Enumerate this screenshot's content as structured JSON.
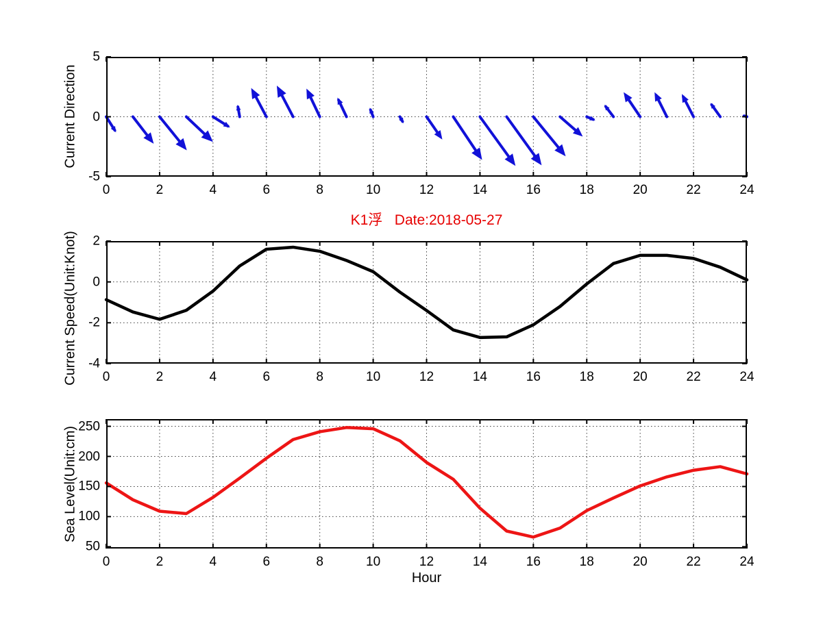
{
  "figure": {
    "title": "K1浮   Date:2018-05-27",
    "title_color": "#e60000",
    "xlabel": "Hour",
    "background_color": "#ffffff",
    "axis_color": "#000000"
  },
  "chart_data": [
    {
      "type": "quiver",
      "ylabel": "Current Direction",
      "xlim": [
        0,
        24
      ],
      "ylim": [
        -5,
        5
      ],
      "xticks": [
        0,
        2,
        4,
        6,
        8,
        10,
        12,
        14,
        16,
        18,
        20,
        22,
        24
      ],
      "yticks": [
        -5,
        0,
        5
      ],
      "xgrid": [
        2,
        4,
        6,
        8,
        10,
        12,
        14,
        16,
        18,
        20,
        22
      ],
      "ygrid": [
        0
      ],
      "grid": "dotted",
      "color": "#1111d8",
      "arrows_note": "each arrow = [hour, u(hours), v(units)], base at (hour, 0)",
      "arrows": [
        [
          0,
          0.37,
          -1.3
        ],
        [
          1,
          0.78,
          -2.25
        ],
        [
          2,
          1.02,
          -2.8
        ],
        [
          3,
          1.0,
          -2.1
        ],
        [
          4,
          0.64,
          -0.9
        ],
        [
          5,
          -0.08,
          1.0
        ],
        [
          6,
          -0.57,
          2.4
        ],
        [
          7,
          -0.61,
          2.6
        ],
        [
          8,
          -0.5,
          2.35
        ],
        [
          9,
          -0.34,
          1.6
        ],
        [
          10,
          -0.13,
          0.75
        ],
        [
          11,
          0.14,
          -0.55
        ],
        [
          12,
          0.59,
          -1.9
        ],
        [
          13,
          1.08,
          -3.6
        ],
        [
          14,
          1.33,
          -4.1
        ],
        [
          15,
          1.31,
          -4.05
        ],
        [
          16,
          1.21,
          -3.3
        ],
        [
          17,
          0.85,
          -1.65
        ],
        [
          18,
          0.32,
          -0.3
        ],
        [
          19,
          -0.34,
          1.0
        ],
        [
          20,
          -0.62,
          2.05
        ],
        [
          21,
          -0.46,
          2.05
        ],
        [
          22,
          -0.44,
          1.9
        ],
        [
          23,
          -0.37,
          1.15
        ],
        [
          24,
          -0.17,
          0.12
        ]
      ]
    },
    {
      "type": "line",
      "ylabel": "Current Speed(Unit:Knot)",
      "xlim": [
        0,
        24
      ],
      "ylim": [
        -4,
        2
      ],
      "xticks": [
        0,
        2,
        4,
        6,
        8,
        10,
        12,
        14,
        16,
        18,
        20,
        22,
        24
      ],
      "yticks": [
        -4,
        -2,
        0,
        2
      ],
      "xgrid": [
        2,
        4,
        6,
        8,
        10,
        12,
        14,
        16,
        18,
        20,
        22
      ],
      "ygrid": [
        -2,
        0
      ],
      "grid": "dotted",
      "color": "#000000",
      "x": [
        0,
        1,
        2,
        3,
        4,
        5,
        6,
        7,
        8,
        9,
        10,
        11,
        12,
        13,
        14,
        15,
        16,
        17,
        18,
        19,
        20,
        21,
        22,
        23,
        24
      ],
      "y": [
        -0.87,
        -1.47,
        -1.83,
        -1.39,
        -0.45,
        0.78,
        1.6,
        1.7,
        1.5,
        1.05,
        0.5,
        -0.5,
        -1.4,
        -2.35,
        -2.72,
        -2.69,
        -2.1,
        -1.2,
        -0.1,
        0.9,
        1.3,
        1.3,
        1.15,
        0.72,
        0.1
      ]
    },
    {
      "type": "line",
      "ylabel": "Sea Level(Unit:cm)",
      "xlim": [
        0,
        24
      ],
      "ylim": [
        47,
        262
      ],
      "xticks": [
        0,
        2,
        4,
        6,
        8,
        10,
        12,
        14,
        16,
        18,
        20,
        22,
        24
      ],
      "yticks": [
        50,
        100,
        150,
        200,
        250
      ],
      "xgrid": [
        2,
        4,
        6,
        8,
        10,
        12,
        14,
        16,
        18,
        20,
        22
      ],
      "ygrid": [
        100,
        150,
        200,
        250
      ],
      "grid": "dotted",
      "color": "#ed1515",
      "x": [
        0,
        1,
        2,
        3,
        4,
        5,
        6,
        7,
        8,
        9,
        10,
        11,
        12,
        13,
        14,
        15,
        16,
        17,
        18,
        19,
        20,
        21,
        22,
        23,
        24
      ],
      "y": [
        156,
        128,
        109,
        105,
        132,
        164,
        197,
        228,
        241,
        248,
        246,
        226,
        190,
        162,
        114,
        76,
        66,
        81,
        110,
        131,
        151,
        166,
        177,
        183,
        171
      ]
    }
  ]
}
